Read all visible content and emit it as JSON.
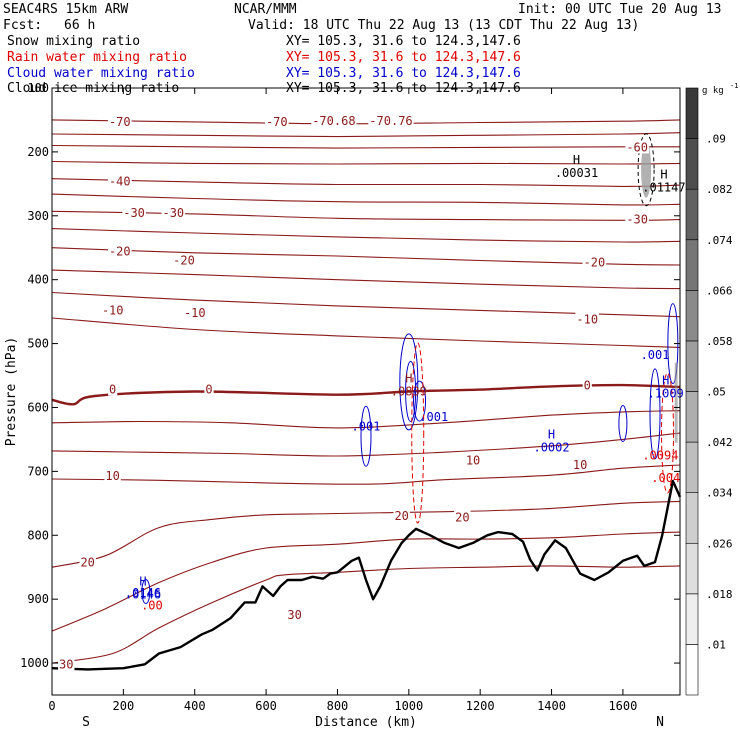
{
  "header": {
    "model": "SEAC4RS 15km ARW",
    "org": "NCAR/MMM",
    "init": "Init: 00 UTC Tue 20 Aug 13",
    "fcst_label": "Fcst:",
    "fcst_value": "66 h",
    "valid": "Valid: 18 UTC Thu 22 Aug 13 (13 CDT Thu 22 Aug 13)"
  },
  "fields": [
    {
      "name": "Snow mixing ratio",
      "xy": "XY= 105.3, 31.6 to 124.3,147.6",
      "color": "#000000"
    },
    {
      "name": "Rain water mixing ratio",
      "xy": "XY= 105.3, 31.6 to 124.3,147.6",
      "color": "#e00000"
    },
    {
      "name": "Cloud water mixing ratio",
      "xy": "XY= 105.3, 31.6 to 124.3,147.6",
      "color": "#0000cc"
    },
    {
      "name": "Cloud ice mixing ratio",
      "xy": "XY= 105.3, 31.6 to 124.3,147.6",
      "color": "#000000"
    }
  ],
  "chart_data": {
    "type": "line",
    "xlabel": "Distance (km)",
    "ylabel": "Pressure (hPa)",
    "x_ticks": [
      0,
      200,
      400,
      600,
      800,
      1000,
      1200,
      1400,
      1600
    ],
    "y_ticks": [
      200,
      300,
      400,
      500,
      600,
      700,
      800,
      900,
      1000
    ],
    "y_top_label": "100",
    "xlim": [
      0,
      1760
    ],
    "ylim": [
      1050,
      100
    ],
    "y_scale": "linear",
    "endpoints": {
      "left": "S",
      "right": "N"
    },
    "colorbar": {
      "unit": "g kg",
      "unit_exp": "-1",
      "labels": [
        ".01",
        ".018",
        ".026",
        ".034",
        ".042",
        ".05",
        ".058",
        ".066",
        ".074",
        ".082",
        ".09"
      ],
      "colors": [
        "#ffffff",
        "#eeeeee",
        "#dedede",
        "#cecece",
        "#bebebe",
        "#aeaeae",
        "#9e9e9e",
        "#8a8a8a",
        "#767676",
        "#626262",
        "#4e4e4e",
        "#3a3a3a"
      ]
    },
    "temperature_contours": {
      "name": "Temperature",
      "units": "C",
      "color": "#8b1a1a",
      "lines": [
        {
          "level": -70,
          "points": [
            [
              0,
              150
            ],
            [
              400,
              153
            ],
            [
              800,
              156
            ],
            [
              1200,
              154
            ],
            [
              1600,
              152
            ],
            [
              1760,
              150
            ]
          ]
        },
        {
          "level": -65,
          "points": [
            [
              0,
              172
            ],
            [
              400,
              174
            ],
            [
              800,
              176
            ],
            [
              1200,
              174
            ],
            [
              1600,
              172
            ],
            [
              1760,
              170
            ]
          ]
        },
        {
          "level": -60,
          "points": [
            [
              0,
              190
            ],
            [
              400,
              192
            ],
            [
              800,
              194
            ],
            [
              1200,
              193
            ],
            [
              1600,
              192
            ],
            [
              1760,
              192
            ]
          ]
        },
        {
          "level": -50,
          "points": [
            [
              0,
              215
            ],
            [
              400,
              218
            ],
            [
              800,
              219
            ],
            [
              1200,
              218
            ],
            [
              1600,
              219
            ],
            [
              1760,
              218
            ]
          ]
        },
        {
          "level": -40,
          "points": [
            [
              0,
              242
            ],
            [
              400,
              247
            ],
            [
              800,
              251
            ],
            [
              1200,
              251
            ],
            [
              1600,
              254
            ],
            [
              1760,
              252
            ]
          ]
        },
        {
          "level": -35,
          "points": [
            [
              0,
              266
            ],
            [
              400,
              273
            ],
            [
              800,
              278
            ],
            [
              1200,
              279
            ],
            [
              1600,
              283
            ],
            [
              1760,
              282
            ]
          ]
        },
        {
          "level": -30,
          "points": [
            [
              0,
              293
            ],
            [
              400,
              297
            ],
            [
              800,
              304
            ],
            [
              1200,
              306
            ],
            [
              1600,
              307
            ],
            [
              1760,
              306
            ]
          ]
        },
        {
          "level": -25,
          "points": [
            [
              0,
              320
            ],
            [
              400,
              327
            ],
            [
              800,
              333
            ],
            [
              1200,
              338
            ],
            [
              1600,
              341
            ],
            [
              1760,
              340
            ]
          ]
        },
        {
          "level": -20,
          "points": [
            [
              0,
              350
            ],
            [
              400,
              358
            ],
            [
              800,
              363
            ],
            [
              1200,
              370
            ],
            [
              1600,
              376
            ],
            [
              1760,
              377
            ]
          ]
        },
        {
          "level": -15,
          "points": [
            [
              0,
              385
            ],
            [
              400,
              392
            ],
            [
              800,
              400
            ],
            [
              1200,
              407
            ],
            [
              1600,
              413
            ],
            [
              1760,
              414
            ]
          ]
        },
        {
          "level": -10,
          "points": [
            [
              0,
              420
            ],
            [
              400,
              432
            ],
            [
              800,
              441
            ],
            [
              1200,
              448
            ],
            [
              1600,
              455
            ],
            [
              1760,
              458
            ]
          ]
        },
        {
          "level": -5,
          "points": [
            [
              0,
              460
            ],
            [
              400,
              478
            ],
            [
              800,
              488
            ],
            [
              1200,
              496
            ],
            [
              1600,
              503
            ],
            [
              1760,
              506
            ]
          ]
        },
        {
          "level": 0,
          "points": [
            [
              0,
              588
            ],
            [
              60,
              595
            ],
            [
              120,
              582
            ],
            [
              400,
              575
            ],
            [
              800,
              580
            ],
            [
              1000,
              575
            ],
            [
              1200,
              572
            ],
            [
              1400,
              567
            ],
            [
              1600,
              565
            ],
            [
              1760,
              568
            ]
          ],
          "bold": true
        },
        {
          "level": 5,
          "points": [
            [
              0,
              624
            ],
            [
              250,
              622
            ],
            [
              500,
              624
            ],
            [
              800,
              632
            ],
            [
              1100,
              624
            ],
            [
              1400,
              612
            ],
            [
              1600,
              607
            ],
            [
              1760,
              605
            ]
          ]
        },
        {
          "level": 10,
          "points": [
            [
              0,
              668
            ],
            [
              250,
              670
            ],
            [
              500,
              672
            ],
            [
              800,
              676
            ],
            [
              1100,
              670
            ],
            [
              1400,
              660
            ],
            [
              1600,
              650
            ],
            [
              1760,
              640
            ]
          ]
        },
        {
          "level": 15,
          "points": [
            [
              0,
              712
            ],
            [
              300,
              714
            ],
            [
              600,
              718
            ],
            [
              900,
              720
            ],
            [
              1100,
              713
            ],
            [
              1400,
              706
            ],
            [
              1600,
              695
            ],
            [
              1760,
              690
            ]
          ]
        },
        {
          "level": 20,
          "points": [
            [
              0,
              850
            ],
            [
              150,
              832
            ],
            [
              300,
              788
            ],
            [
              450,
              775
            ],
            [
              600,
              768
            ],
            [
              800,
              766
            ],
            [
              1000,
              764
            ],
            [
              1200,
              762
            ],
            [
              1400,
              758
            ],
            [
              1600,
              750
            ],
            [
              1760,
              747
            ]
          ]
        },
        {
          "level": 25,
          "points": [
            [
              0,
              950
            ],
            [
              150,
              915
            ],
            [
              300,
              874
            ],
            [
              450,
              842
            ],
            [
              600,
              820
            ],
            [
              800,
              814
            ],
            [
              1000,
              806
            ],
            [
              1200,
              806
            ],
            [
              1400,
              804
            ],
            [
              1600,
              798
            ],
            [
              1760,
              795
            ]
          ]
        },
        {
          "level": 30,
          "points": [
            [
              0,
              1000
            ],
            [
              170,
              985
            ],
            [
              300,
              945
            ],
            [
              450,
              905
            ],
            [
              600,
              870
            ],
            [
              650,
              862
            ],
            [
              800,
              858
            ],
            [
              1000,
              852
            ],
            [
              1200,
              850
            ],
            [
              1400,
              848
            ],
            [
              1600,
              850
            ],
            [
              1760,
              848
            ]
          ]
        }
      ],
      "labels": [
        {
          "text": "-70",
          "x": 190,
          "p": 153
        },
        {
          "text": "-70",
          "x": 630,
          "p": 153
        },
        {
          "text": "-70.68",
          "x": 790,
          "p": 152
        },
        {
          "text": "-70.76",
          "x": 950,
          "p": 152
        },
        {
          "text": "-60",
          "x": 1640,
          "p": 193
        },
        {
          "text": "-40",
          "x": 190,
          "p": 246
        },
        {
          "text": "-30",
          "x": 230,
          "p": 296
        },
        {
          "text": "-30",
          "x": 340,
          "p": 296
        },
        {
          "text": "-30",
          "x": 1640,
          "p": 306
        },
        {
          "text": "-20",
          "x": 190,
          "p": 356
        },
        {
          "text": "-20",
          "x": 370,
          "p": 370
        },
        {
          "text": "-20",
          "x": 1520,
          "p": 373
        },
        {
          "text": "-10",
          "x": 170,
          "p": 448
        },
        {
          "text": "-10",
          "x": 400,
          "p": 452
        },
        {
          "text": "-10",
          "x": 1500,
          "p": 462
        },
        {
          "text": "0",
          "x": 170,
          "p": 572
        },
        {
          "text": "0",
          "x": 440,
          "p": 572
        },
        {
          "text": "0",
          "x": 1500,
          "p": 566
        },
        {
          "text": "10",
          "x": 170,
          "p": 707
        },
        {
          "text": "10",
          "x": 1180,
          "p": 683
        },
        {
          "text": "10",
          "x": 1480,
          "p": 690
        },
        {
          "text": "20",
          "x": 980,
          "p": 770
        },
        {
          "text": "20",
          "x": 1150,
          "p": 772
        },
        {
          "text": "20",
          "x": 100,
          "p": 843
        },
        {
          "text": "30",
          "x": 680,
          "p": 925
        },
        {
          "text": "30",
          "x": 40,
          "p": 1002
        }
      ]
    },
    "terrain": {
      "name": "Surface",
      "color": "#000000",
      "points": [
        [
          0,
          1008
        ],
        [
          100,
          1010
        ],
        [
          200,
          1008
        ],
        [
          260,
          1002
        ],
        [
          300,
          985
        ],
        [
          360,
          975
        ],
        [
          420,
          955
        ],
        [
          450,
          948
        ],
        [
          500,
          930
        ],
        [
          540,
          905
        ],
        [
          570,
          905
        ],
        [
          590,
          880
        ],
        [
          620,
          895
        ],
        [
          640,
          880
        ],
        [
          660,
          870
        ],
        [
          700,
          870
        ],
        [
          730,
          865
        ],
        [
          760,
          868
        ],
        [
          780,
          860
        ],
        [
          800,
          858
        ],
        [
          840,
          840
        ],
        [
          860,
          835
        ],
        [
          880,
          870
        ],
        [
          900,
          900
        ],
        [
          920,
          880
        ],
        [
          950,
          840
        ],
        [
          980,
          812
        ],
        [
          1000,
          800
        ],
        [
          1020,
          790
        ],
        [
          1060,
          800
        ],
        [
          1100,
          812
        ],
        [
          1140,
          820
        ],
        [
          1180,
          812
        ],
        [
          1220,
          800
        ],
        [
          1250,
          795
        ],
        [
          1290,
          798
        ],
        [
          1320,
          810
        ],
        [
          1340,
          838
        ],
        [
          1360,
          855
        ],
        [
          1380,
          830
        ],
        [
          1410,
          808
        ],
        [
          1440,
          820
        ],
        [
          1480,
          860
        ],
        [
          1520,
          870
        ],
        [
          1560,
          858
        ],
        [
          1600,
          840
        ],
        [
          1640,
          832
        ],
        [
          1660,
          848
        ],
        [
          1690,
          842
        ],
        [
          1710,
          800
        ],
        [
          1740,
          715
        ],
        [
          1760,
          740
        ]
      ]
    },
    "rain_contours": [
      {
        "label": ".00",
        "x": 280,
        "p": 910
      },
      {
        "label": ".0094",
        "x": 1705,
        "p": 675
      },
      {
        "label": ".004",
        "x": 1720,
        "p": 710
      }
    ],
    "cloud_water_contours": [
      {
        "label": ".001",
        "x": 880,
        "p": 630
      },
      {
        "label": ".001",
        "x": 1070,
        "p": 615
      },
      {
        "label": ".001",
        "x": 1690,
        "p": 518
      },
      {
        "label": ".0146",
        "x": 255,
        "p": 890
      }
    ],
    "max_markers": [
      {
        "text": "H",
        "value": ".00031",
        "x": 1470,
        "p": 225,
        "color": "#000000"
      },
      {
        "text": "H",
        "value": ".01147",
        "x": 1715,
        "p": 248,
        "color": "#000000"
      },
      {
        "text": "H",
        "value": ".0002",
        "x": 1400,
        "p": 655,
        "color": "#0000cc"
      },
      {
        "text": "H",
        "value": ".1009",
        "x": 1720,
        "p": 570,
        "color": "#0000cc"
      },
      {
        "text": "H",
        "value": ".0146",
        "x": 255,
        "p": 885,
        "color": "#0000cc"
      },
      {
        "text": "H",
        "value": ".0839",
        "x": 1000,
        "p": 567,
        "color": "#8b1a1a"
      }
    ]
  }
}
